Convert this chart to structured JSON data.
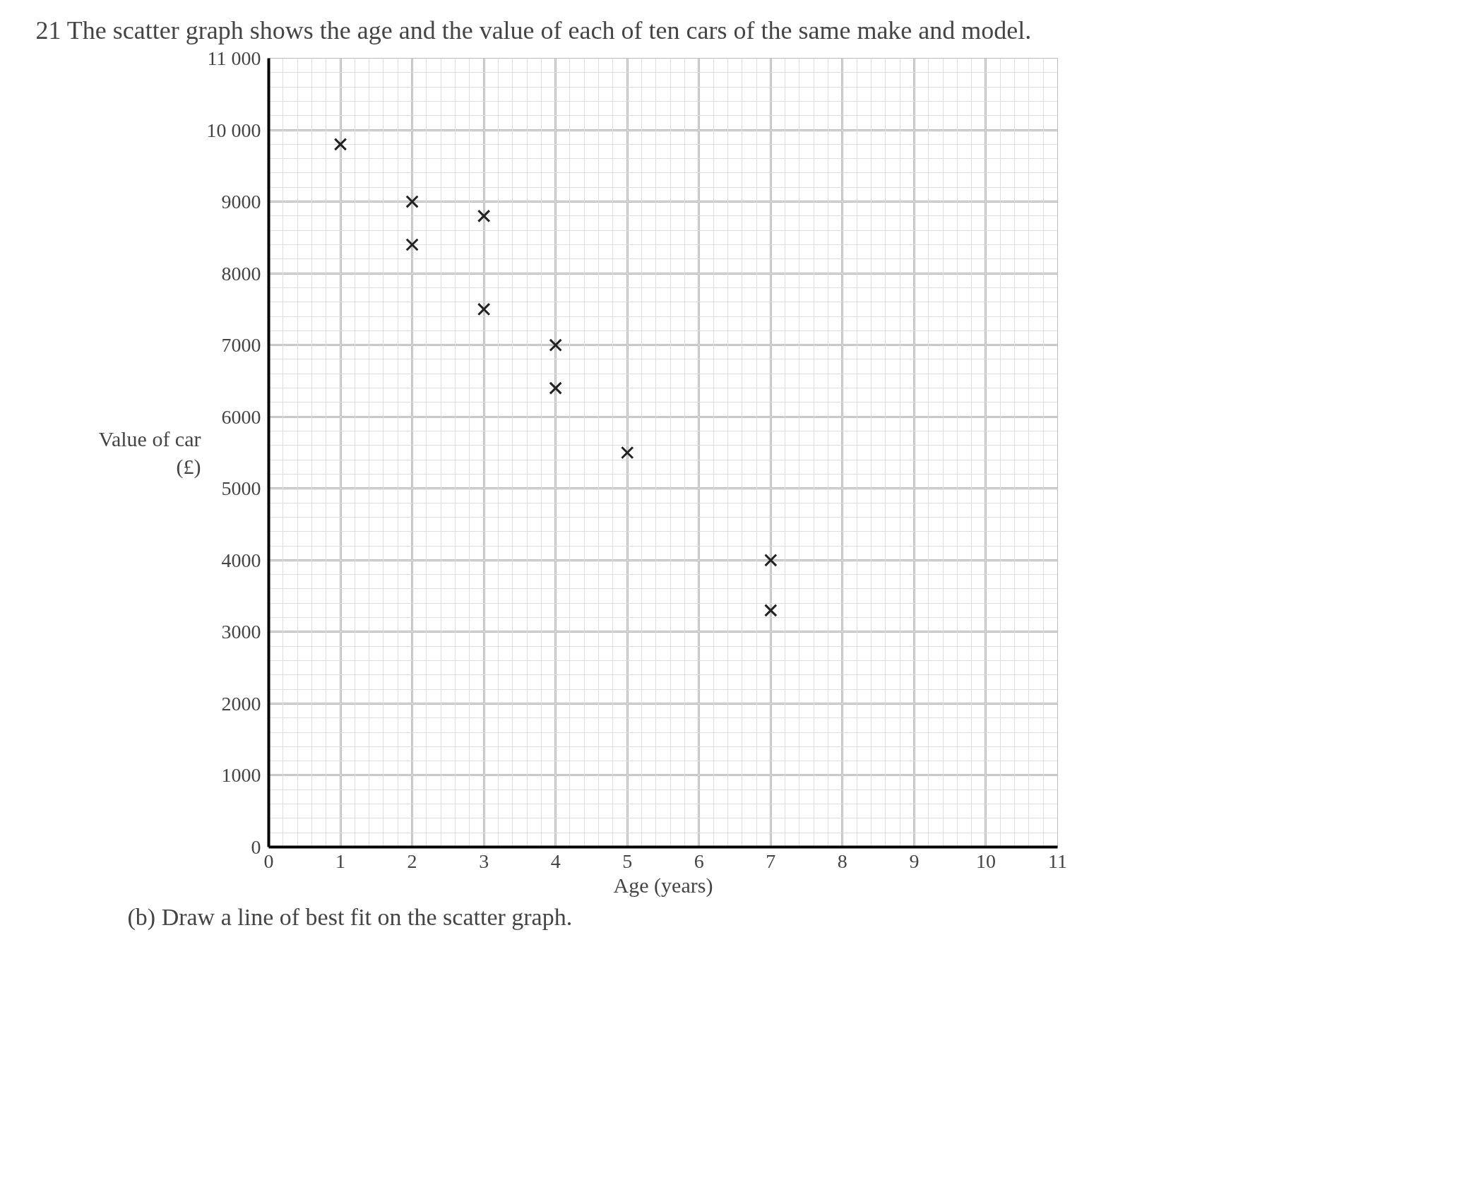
{
  "chart_data": {
    "type": "scatter",
    "title": "21     The scatter graph shows the age and the value of each of ten cars of the same make and model.",
    "xlabel": "Age (years)",
    "ylabel": "Value of car\n(£)",
    "x": [
      1,
      2,
      2,
      3,
      3,
      4,
      4,
      5,
      7,
      7
    ],
    "values": [
      9800,
      9000,
      8400,
      8800,
      7500,
      7000,
      6400,
      5500,
      4000,
      3300
    ],
    "color": "#222222",
    "marker": "cross",
    "xlim": [
      0,
      11
    ],
    "ylim": [
      0,
      11000
    ],
    "xticks": [
      0,
      1,
      2,
      3,
      4,
      5,
      6,
      7,
      8,
      9,
      10,
      11
    ],
    "yticks": [
      0,
      1000,
      2000,
      3000,
      4000,
      5000,
      6000,
      7000,
      8000,
      9000,
      {
        "value": 10000,
        "label": "10 000"
      },
      {
        "value": 11000,
        "label": "11 000"
      }
    ],
    "grid": true,
    "annotations": [
      "(b)     Draw a line of best fit on the scatter graph."
    ]
  }
}
